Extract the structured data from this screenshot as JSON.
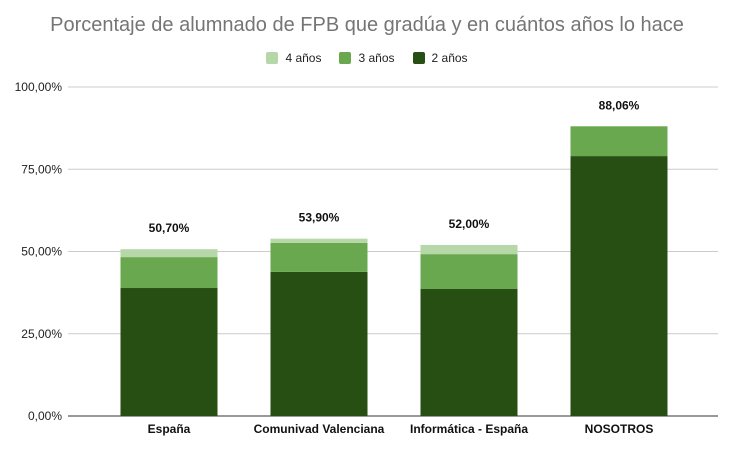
{
  "chart_data": {
    "type": "bar",
    "stacked": true,
    "title": "Porcentaje de alumnado de FPB que gradúa y en cuántos años lo hace",
    "categories": [
      "España",
      "Comunivad Valenciana",
      "Informática - España",
      "NOSOTROS"
    ],
    "series": [
      {
        "name": "2 años",
        "color": "#274e13",
        "values": [
          38.9,
          43.8,
          38.6,
          79.0
        ]
      },
      {
        "name": "3 años",
        "color": "#6aa84f",
        "values": [
          9.4,
          8.8,
          10.6,
          9.06
        ]
      },
      {
        "name": "4 años",
        "color": "#b6d7a8",
        "values": [
          2.4,
          1.3,
          2.8,
          0
        ]
      }
    ],
    "legend_order": [
      "4 años",
      "3 años",
      "2 años"
    ],
    "totals": [
      "50,70%",
      "53,90%",
      "52,00%",
      "88,06%"
    ],
    "ylim": [
      0,
      100
    ],
    "yticks": [
      "0,00%",
      "25,00%",
      "50,00%",
      "75,00%",
      "100,00%"
    ],
    "grid": true,
    "legend_position": "top"
  }
}
